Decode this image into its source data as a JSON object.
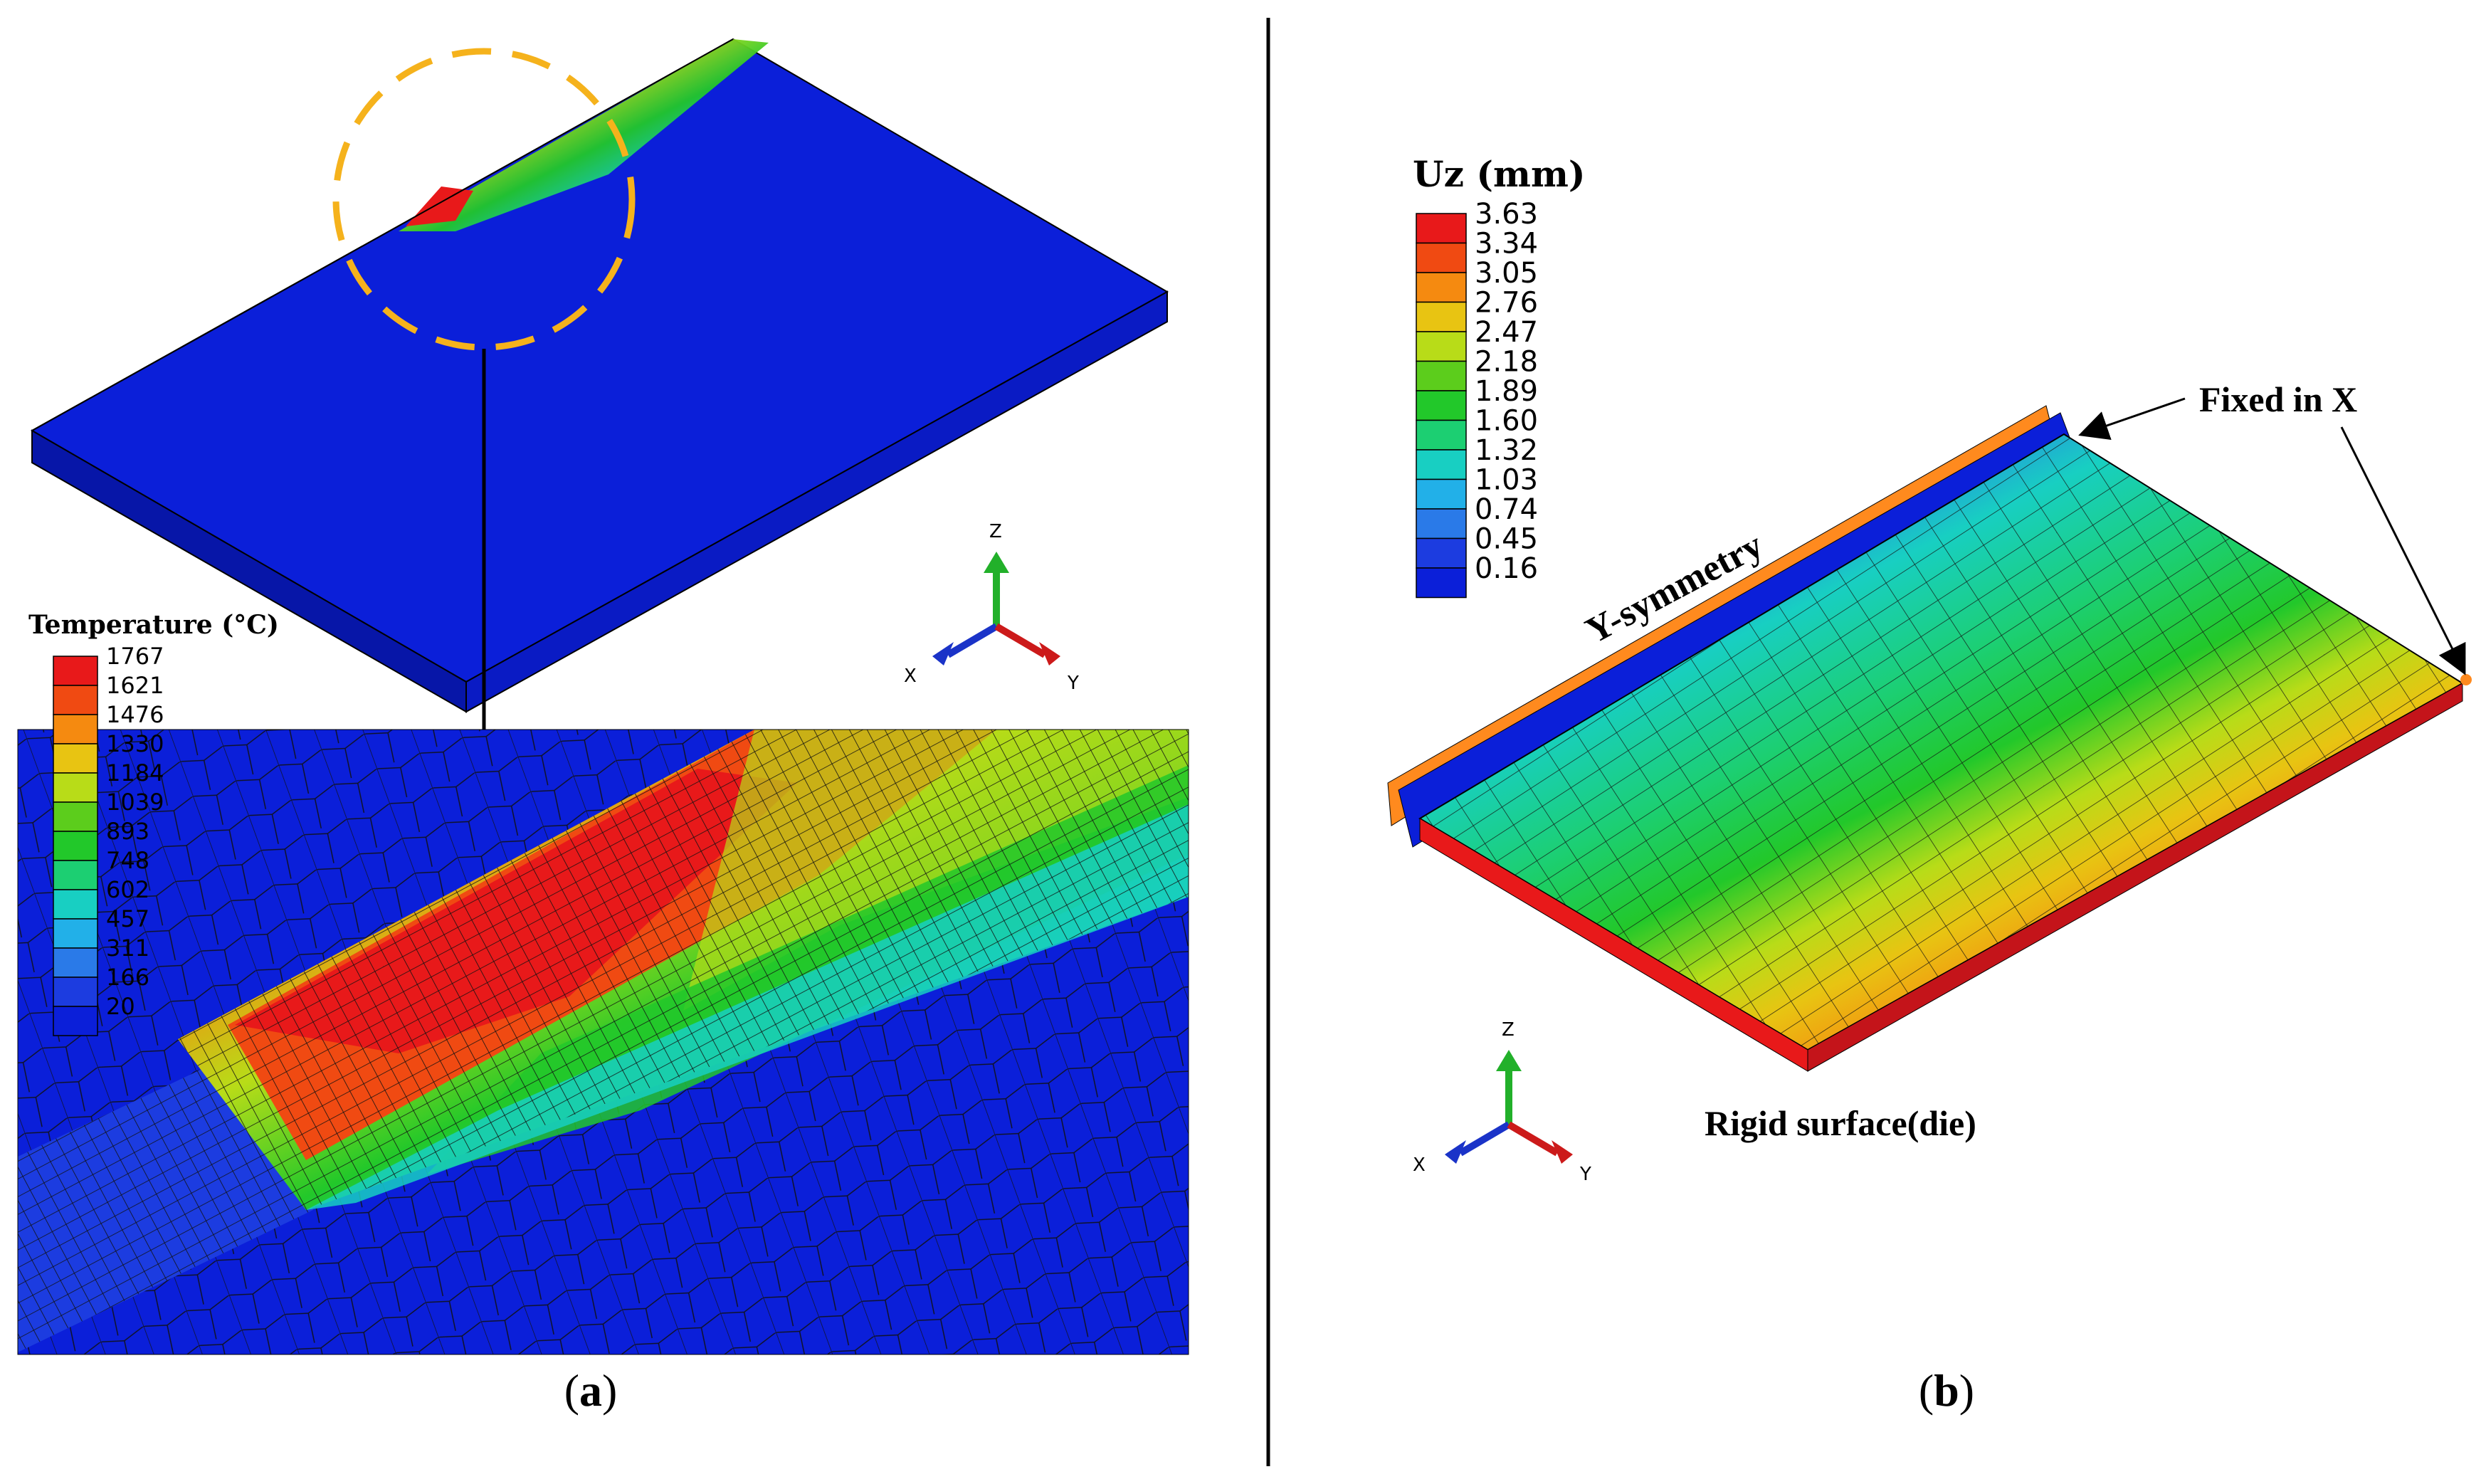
{
  "panel_a": {
    "label_open": "(",
    "label_letter": "a",
    "label_close": ")",
    "legend": {
      "title": "Temperature (°C)",
      "values": [
        "1767",
        "1621",
        "1476",
        "1330",
        "1184",
        "1039",
        "893",
        "748",
        "602",
        "457",
        "311",
        "166",
        "20"
      ]
    },
    "triad": {
      "z": "Z",
      "x": "X",
      "y": "Y"
    }
  },
  "panel_b": {
    "label_open": "(",
    "label_letter": "b",
    "label_close": ")",
    "legend": {
      "title": "Uz (mm)",
      "values": [
        "3.63",
        "3.34",
        "3.05",
        "2.76",
        "2.47",
        "2.18",
        "1.89",
        "1.60",
        "1.32",
        "1.03",
        "0.74",
        "0.45",
        "0.16"
      ]
    },
    "annotation_symmetry": "Y-symmetry",
    "annotation_fixed": "Fixed in X",
    "annotation_rigid": "Rigid surface(die)",
    "triad": {
      "z": "Z",
      "x": "X",
      "y": "Y"
    }
  },
  "colors": {
    "scale": [
      "#e8191a",
      "#f04a12",
      "#f58a10",
      "#e8c412",
      "#b8dc18",
      "#5ccd1c",
      "#22c82a",
      "#1ccf72",
      "#18cfc2",
      "#22b0e8",
      "#2a7ae8",
      "#1c3ce0",
      "#0b1fd9"
    ],
    "plate_blue": "#0b1fd9",
    "plate_side": "#0716a8",
    "dash_orange": "#f5b21c",
    "symmetry_orange": "#ff8a1e"
  }
}
